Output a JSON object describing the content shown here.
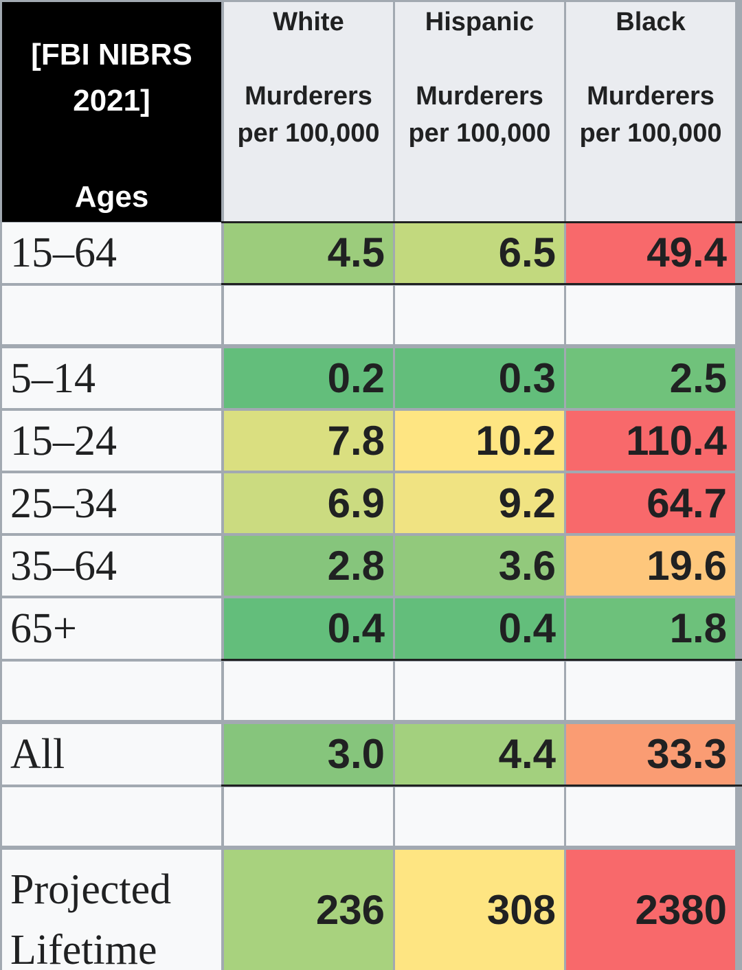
{
  "chart_data": {
    "type": "table",
    "corner_header": {
      "line1": "[FBI NIBRS",
      "line2": "2021]",
      "line3": "Ages"
    },
    "columns": [
      {
        "group": "White",
        "line1": "Murderers",
        "line2": "per 100,000"
      },
      {
        "group": "Hispanic",
        "line1": "Murderers",
        "line2": "per 100,000"
      },
      {
        "group": "Black",
        "line1": "Murderers",
        "line2": "per 100,000"
      }
    ],
    "rows": [
      {
        "label": "15–64",
        "values": [
          "4.5",
          "6.5",
          "49.4"
        ],
        "colors": [
          "#9ccc7c",
          "#c2d97e",
          "#f8696b"
        ]
      },
      {
        "label": "",
        "values": [
          "",
          "",
          ""
        ]
      },
      {
        "label": "5–14",
        "values": [
          "0.2",
          "0.3",
          "2.5"
        ],
        "colors": [
          "#63be7b",
          "#63be7b",
          "#70c27b"
        ]
      },
      {
        "label": "15–24",
        "values": [
          "7.8",
          "10.2",
          "110.4"
        ],
        "colors": [
          "#dadf80",
          "#fee582",
          "#f8696b"
        ]
      },
      {
        "label": "25–34",
        "values": [
          "6.9",
          "9.2",
          "64.7"
        ],
        "colors": [
          "#cbdb80",
          "#f0e382",
          "#f8696b"
        ]
      },
      {
        "label": "35–64",
        "values": [
          "2.8",
          "3.6",
          "19.6"
        ],
        "colors": [
          "#86c57c",
          "#92c97c",
          "#fec77c"
        ]
      },
      {
        "label": "65+",
        "values": [
          "0.4",
          "0.4",
          "1.8"
        ],
        "colors": [
          "#63be7b",
          "#63be7b",
          "#6dc17b"
        ]
      },
      {
        "label": "",
        "values": [
          "",
          "",
          ""
        ]
      },
      {
        "label": "All",
        "values": [
          "3.0",
          "4.4",
          "33.3"
        ],
        "colors": [
          "#86c57c",
          "#a3d07e",
          "#fa9c73"
        ]
      },
      {
        "label": "",
        "values": [
          "",
          "",
          ""
        ]
      },
      {
        "label": "Projected\nLifetime",
        "values": [
          "236",
          "308",
          "2380"
        ],
        "colors": [
          "#a8d27e",
          "#fee582",
          "#f8696b"
        ]
      }
    ]
  }
}
